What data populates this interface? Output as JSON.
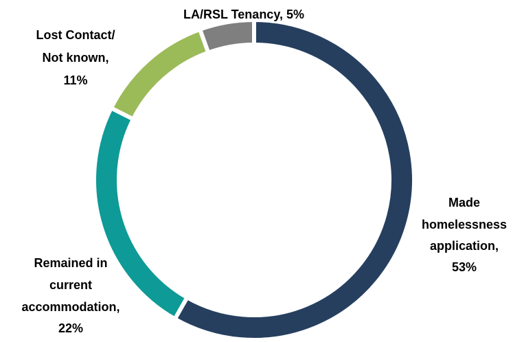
{
  "chart_data": {
    "type": "donut",
    "values": [
      53,
      22,
      11,
      5
    ],
    "data_labels": [
      [
        "Made",
        "homelessness",
        "application,",
        "53%"
      ],
      [
        "Remained in",
        "current",
        "accommodation,",
        "22%"
      ],
      [
        "Lost Contact/",
        "Not known,",
        "11%"
      ],
      [
        "LA/RSL Tenancy, 5%"
      ]
    ],
    "colors": [
      "#263f5f",
      "#0e9a96",
      "#9bbb59",
      "#7f7f7f"
    ]
  }
}
